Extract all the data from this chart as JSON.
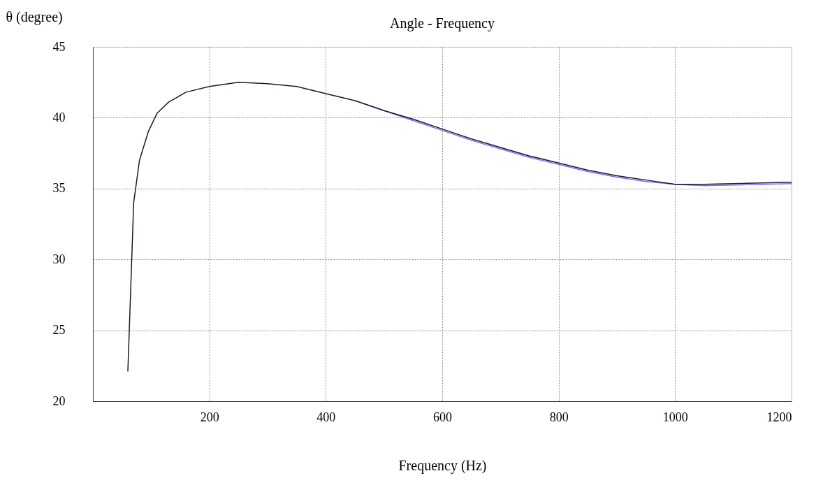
{
  "chart_data": {
    "type": "line",
    "title": "Angle - Frequency",
    "xlabel": "Frequency (Hz)",
    "ylabel": "θ (degree)",
    "x": [
      60,
      65,
      70,
      80,
      95,
      110,
      130,
      160,
      200,
      250,
      300,
      350,
      400,
      450,
      500,
      550,
      600,
      650,
      700,
      750,
      800,
      850,
      900,
      950,
      1000,
      1050,
      1100,
      1150,
      1200
    ],
    "series": [
      {
        "color": "#7070ff",
        "values": [
          null,
          null,
          null,
          null,
          null,
          null,
          null,
          null,
          null,
          null,
          null,
          null,
          null,
          41.2,
          40.5,
          39.8,
          39.1,
          38.4,
          37.8,
          37.2,
          36.7,
          36.2,
          35.8,
          35.5,
          35.3,
          35.2,
          35.25,
          35.3,
          35.35
        ]
      },
      {
        "color": "#1a1a2e",
        "values": [
          22.1,
          28,
          34,
          37,
          39,
          40.3,
          41.1,
          41.8,
          42.2,
          42.5,
          42.4,
          42.2,
          41.7,
          41.2,
          40.5,
          39.9,
          39.2,
          38.5,
          37.9,
          37.3,
          36.8,
          36.3,
          35.9,
          35.6,
          35.3,
          35.3,
          35.35,
          35.4,
          35.45
        ]
      }
    ],
    "xlim": [
      0,
      1200
    ],
    "xticks": [
      200,
      400,
      600,
      800,
      1000,
      1200
    ],
    "ylim": [
      20,
      45
    ],
    "yticks": [
      20,
      25,
      30,
      35,
      40,
      45
    ],
    "grid": true,
    "legend": false,
    "marker": "none",
    "line_style": "solid"
  }
}
